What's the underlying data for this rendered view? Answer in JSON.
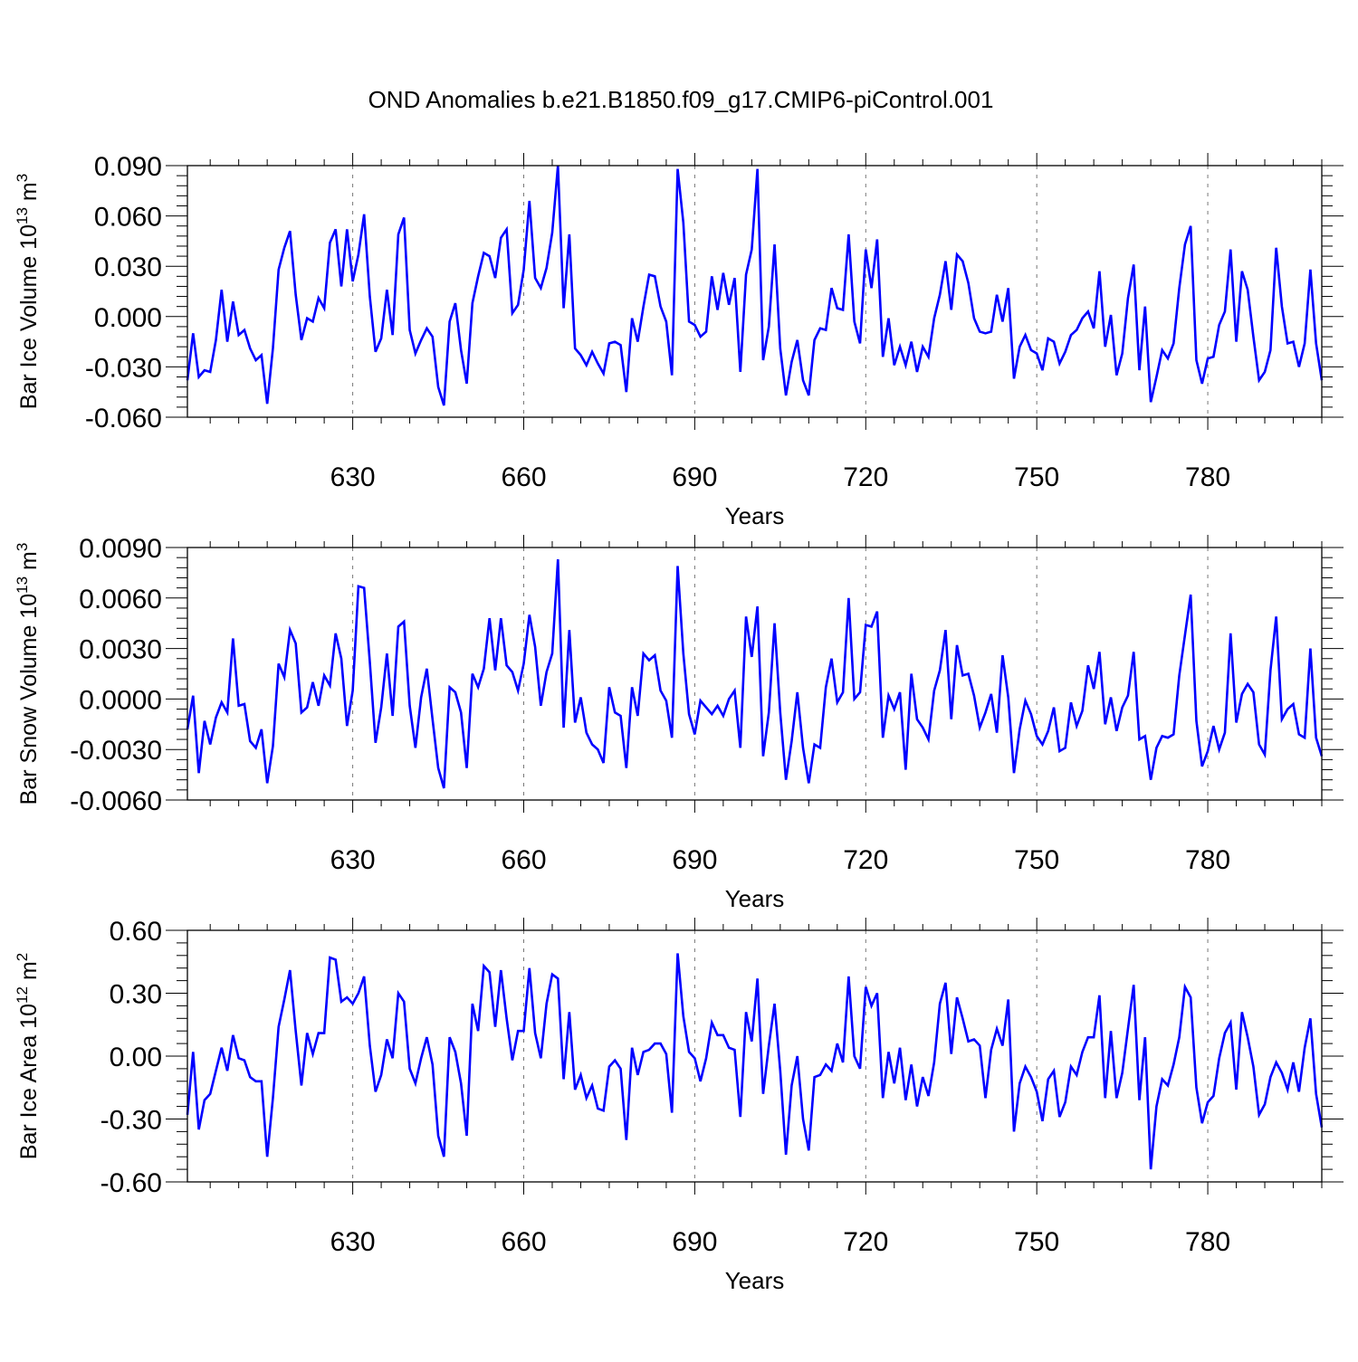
{
  "title": "OND Anomalies b.e21.B1850.f09_g17.CMIP6-piControl.001",
  "colors": {
    "line": "#0000ff",
    "axis": "#000000",
    "grid": "#777777"
  },
  "chart_data": [
    {
      "type": "line",
      "title": "OND Anomalies b.e21.B1850.f09_g17.CMIP6-piControl.001",
      "xlabel": "Years",
      "ylabel_parts": [
        "Bar Ice Volume 10",
        "13",
        " m",
        "3"
      ],
      "ylabel": "Bar Ice Volume 10^13 m^3",
      "xlim": [
        601,
        800
      ],
      "ylim": [
        -0.06,
        0.09
      ],
      "x_ticks": [
        630,
        660,
        690,
        720,
        750,
        780
      ],
      "x_tick_labels": [
        "630",
        "660",
        "690",
        "720",
        "750",
        "780"
      ],
      "y_ticks": [
        -0.06,
        -0.03,
        0.0,
        0.03,
        0.06,
        0.09
      ],
      "y_tick_labels": [
        "-0.060",
        "-0.030",
        "0.000",
        "0.030",
        "0.060",
        "0.090"
      ],
      "grid": "vertical dashed at major x ticks",
      "x_start": 601,
      "series": [
        {
          "values": [
            -0.038,
            -0.01,
            -0.036,
            -0.032,
            -0.033,
            -0.014,
            0.016,
            -0.015,
            0.009,
            -0.011,
            -0.008,
            -0.019,
            -0.026,
            -0.023,
            -0.052,
            -0.019,
            0.028,
            0.041,
            0.051,
            0.013,
            -0.014,
            -0.001,
            -0.003,
            0.011,
            0.005,
            0.044,
            0.052,
            0.018,
            0.052,
            0.021,
            0.037,
            0.061,
            0.012,
            -0.021,
            -0.013,
            0.016,
            -0.011,
            0.049,
            0.059,
            -0.008,
            -0.022,
            -0.014,
            -0.007,
            -0.012,
            -0.042,
            -0.053,
            -0.003,
            0.008,
            -0.02,
            -0.04,
            0.008,
            0.024,
            0.038,
            0.036,
            0.023,
            0.047,
            0.052,
            0.002,
            0.007,
            0.028,
            0.069,
            0.023,
            0.017,
            0.029,
            0.05,
            0.09,
            0.005,
            0.049,
            -0.019,
            -0.023,
            -0.029,
            -0.021,
            -0.028,
            -0.034,
            -0.016,
            -0.015,
            -0.017,
            -0.045,
            -0.001,
            -0.015,
            0.006,
            0.025,
            0.024,
            0.006,
            -0.003,
            -0.035,
            0.088,
            0.056,
            -0.003,
            -0.005,
            -0.012,
            -0.009,
            0.024,
            0.004,
            0.026,
            0.007,
            0.023,
            -0.033,
            0.025,
            0.04,
            0.088,
            -0.026,
            -0.006,
            0.043,
            -0.019,
            -0.047,
            -0.027,
            -0.014,
            -0.038,
            -0.047,
            -0.014,
            -0.007,
            -0.008,
            0.017,
            0.005,
            0.004,
            0.049,
            -0.003,
            -0.016,
            0.04,
            0.017,
            0.046,
            -0.024,
            -0.001,
            -0.029,
            -0.018,
            -0.029,
            -0.015,
            -0.033,
            -0.018,
            -0.024,
            -0.001,
            0.013,
            0.033,
            0.004,
            0.037,
            0.033,
            0.02,
            -0.001,
            -0.009,
            -0.01,
            -0.009,
            0.013,
            -0.003,
            0.017,
            -0.037,
            -0.018,
            -0.011,
            -0.02,
            -0.022,
            -0.032,
            -0.013,
            -0.015,
            -0.028,
            -0.021,
            -0.011,
            -0.008,
            -0.001,
            0.003,
            -0.007,
            0.027,
            -0.018,
            0.001,
            -0.035,
            -0.022,
            0.011,
            0.031,
            -0.032,
            0.006,
            -0.051,
            -0.036,
            -0.02,
            -0.025,
            -0.016,
            0.017,
            0.043,
            0.054,
            -0.026,
            -0.04,
            -0.025,
            -0.024,
            -0.005,
            0.003,
            0.04,
            -0.015,
            0.027,
            0.016,
            -0.012,
            -0.038,
            -0.033,
            -0.02,
            0.041,
            0.006,
            -0.016,
            -0.015,
            -0.03,
            -0.016,
            0.028,
            -0.016,
            -0.038
          ]
        }
      ]
    },
    {
      "type": "line",
      "xlabel": "Years",
      "ylabel_parts": [
        "Bar Snow Volume 10",
        "13",
        " m",
        "3"
      ],
      "ylabel": "Bar Snow Volume 10^13 m^3",
      "xlim": [
        601,
        800
      ],
      "ylim": [
        -0.006,
        0.009
      ],
      "x_ticks": [
        630,
        660,
        690,
        720,
        750,
        780
      ],
      "x_tick_labels": [
        "630",
        "660",
        "690",
        "720",
        "750",
        "780"
      ],
      "y_ticks": [
        -0.006,
        -0.003,
        0.0,
        0.003,
        0.006,
        0.009
      ],
      "y_tick_labels": [
        "-0.0060",
        "-0.0030",
        "0.0000",
        "0.0030",
        "0.0060",
        "0.0090"
      ],
      "grid": "vertical dashed at major x ticks",
      "x_start": 601,
      "series": [
        {
          "values": [
            -0.0018,
            0.0002,
            -0.0044,
            -0.0013,
            -0.0027,
            -0.0011,
            -0.0002,
            -0.0008,
            0.0036,
            -0.0004,
            -0.0003,
            -0.0025,
            -0.0029,
            -0.0018,
            -0.005,
            -0.0028,
            0.0021,
            0.0013,
            0.0041,
            0.0033,
            -0.0008,
            -0.0005,
            0.001,
            -0.0004,
            0.0014,
            0.0008,
            0.0039,
            0.0024,
            -0.0016,
            0.0005,
            0.0067,
            0.0066,
            0.0022,
            -0.0026,
            -0.0005,
            0.0027,
            -0.001,
            0.0043,
            0.0046,
            -0.0004,
            -0.0029,
            0.0001,
            0.0018,
            -0.0012,
            -0.0041,
            -0.0053,
            0.0007,
            0.0004,
            -0.0008,
            -0.0041,
            0.0015,
            0.0007,
            0.0018,
            0.0048,
            0.0017,
            0.0048,
            0.002,
            0.0016,
            0.0005,
            0.0021,
            0.005,
            0.0031,
            -0.0004,
            0.0016,
            0.0027,
            0.0083,
            -0.0017,
            0.0041,
            -0.0014,
            0.0001,
            -0.002,
            -0.0027,
            -0.003,
            -0.0038,
            0.0007,
            -0.0008,
            -0.001,
            -0.0041,
            0.0007,
            -0.001,
            0.0027,
            0.0023,
            0.0026,
            0.0005,
            -0.0001,
            -0.0023,
            0.0079,
            0.0027,
            -0.0009,
            -0.0021,
            -0.0001,
            -0.0005,
            -0.0009,
            -0.0004,
            -0.001,
            0.0,
            0.0005,
            -0.0029,
            0.0049,
            0.0025,
            0.0055,
            -0.0034,
            -0.0008,
            0.0045,
            -0.0008,
            -0.0048,
            -0.0025,
            0.0004,
            -0.0029,
            -0.005,
            -0.0027,
            -0.0029,
            0.0007,
            0.0024,
            -0.0002,
            0.0004,
            0.006,
            0.0,
            0.0004,
            0.0044,
            0.0043,
            0.0052,
            -0.0023,
            0.0002,
            -0.0006,
            0.0004,
            -0.0042,
            0.0015,
            -0.0012,
            -0.0017,
            -0.0024,
            0.0005,
            0.0017,
            0.0041,
            -0.0012,
            0.0032,
            0.0014,
            0.0015,
            0.0002,
            -0.0017,
            -0.0008,
            0.0003,
            -0.002,
            0.0026,
            0.0001,
            -0.0044,
            -0.0018,
            -0.0001,
            -0.0009,
            -0.0022,
            -0.0027,
            -0.0019,
            -0.0005,
            -0.0031,
            -0.0029,
            -0.0002,
            -0.0016,
            -0.0007,
            0.002,
            0.0006,
            0.0028,
            -0.0015,
            0.0001,
            -0.0019,
            -0.0005,
            0.0002,
            0.0028,
            -0.0024,
            -0.0022,
            -0.0048,
            -0.0029,
            -0.0022,
            -0.0023,
            -0.0021,
            0.0014,
            0.0038,
            0.0062,
            -0.0013,
            -0.004,
            -0.0031,
            -0.0016,
            -0.003,
            -0.002,
            0.0039,
            -0.0014,
            0.0003,
            0.0009,
            0.0004,
            -0.0027,
            -0.0033,
            0.0017,
            0.0049,
            -0.0012,
            -0.0006,
            -0.0003,
            -0.0021,
            -0.0023,
            0.003,
            -0.0023,
            -0.0034
          ]
        }
      ]
    },
    {
      "type": "line",
      "xlabel": "Years",
      "ylabel_parts": [
        "Bar Ice Area 10",
        "12",
        " m",
        "2"
      ],
      "ylabel": "Bar Ice Area 10^12 m^2",
      "xlim": [
        601,
        800
      ],
      "ylim": [
        -0.6,
        0.6
      ],
      "x_ticks": [
        630,
        660,
        690,
        720,
        750,
        780
      ],
      "x_tick_labels": [
        "630",
        "660",
        "690",
        "720",
        "750",
        "780"
      ],
      "y_ticks": [
        -0.6,
        -0.3,
        0.0,
        0.3,
        0.6
      ],
      "y_tick_labels": [
        "-0.60",
        "-0.30",
        "0.00",
        "0.30",
        "0.60"
      ],
      "grid": "vertical dashed at major x ticks",
      "x_start": 601,
      "series": [
        {
          "values": [
            -0.28,
            0.02,
            -0.35,
            -0.21,
            -0.18,
            -0.07,
            0.04,
            -0.07,
            0.1,
            -0.01,
            -0.02,
            -0.1,
            -0.12,
            -0.12,
            -0.48,
            -0.2,
            0.14,
            0.27,
            0.41,
            0.12,
            -0.14,
            0.11,
            0.01,
            0.11,
            0.11,
            0.47,
            0.46,
            0.26,
            0.28,
            0.25,
            0.3,
            0.38,
            0.05,
            -0.17,
            -0.09,
            0.08,
            -0.01,
            0.3,
            0.26,
            -0.06,
            -0.13,
            -0.01,
            0.09,
            -0.04,
            -0.38,
            -0.48,
            0.09,
            0.02,
            -0.13,
            -0.38,
            0.25,
            0.12,
            0.43,
            0.4,
            0.14,
            0.41,
            0.18,
            -0.02,
            0.12,
            0.12,
            0.42,
            0.11,
            -0.01,
            0.25,
            0.39,
            0.37,
            -0.11,
            0.21,
            -0.16,
            -0.09,
            -0.2,
            -0.14,
            -0.25,
            -0.26,
            -0.05,
            -0.02,
            -0.06,
            -0.4,
            0.04,
            -0.09,
            0.02,
            0.03,
            0.06,
            0.06,
            0.01,
            -0.27,
            0.49,
            0.19,
            0.02,
            -0.01,
            -0.12,
            -0.01,
            0.16,
            0.1,
            0.1,
            0.04,
            0.03,
            -0.29,
            0.21,
            0.07,
            0.37,
            -0.18,
            0.05,
            0.25,
            -0.07,
            -0.47,
            -0.14,
            0.0,
            -0.3,
            -0.45,
            -0.1,
            -0.09,
            -0.04,
            -0.07,
            0.06,
            -0.03,
            0.38,
            0.0,
            -0.06,
            0.33,
            0.24,
            0.3,
            -0.2,
            0.02,
            -0.13,
            0.04,
            -0.21,
            -0.04,
            -0.24,
            -0.1,
            -0.19,
            -0.03,
            0.25,
            0.35,
            0.01,
            0.28,
            0.18,
            0.07,
            0.08,
            0.05,
            -0.2,
            0.03,
            0.13,
            0.05,
            0.27,
            -0.36,
            -0.13,
            -0.05,
            -0.1,
            -0.17,
            -0.31,
            -0.11,
            -0.07,
            -0.29,
            -0.22,
            -0.05,
            -0.09,
            0.02,
            0.09,
            0.09,
            0.29,
            -0.2,
            0.12,
            -0.2,
            -0.08,
            0.13,
            0.34,
            -0.21,
            0.09,
            -0.54,
            -0.24,
            -0.11,
            -0.14,
            -0.04,
            0.09,
            0.33,
            0.28,
            -0.15,
            -0.32,
            -0.22,
            -0.19,
            -0.01,
            0.11,
            0.16,
            -0.16,
            0.21,
            0.09,
            -0.05,
            -0.28,
            -0.23,
            -0.1,
            -0.03,
            -0.08,
            -0.16,
            -0.03,
            -0.17,
            0.04,
            0.18,
            -0.18,
            -0.34
          ]
        }
      ]
    }
  ]
}
